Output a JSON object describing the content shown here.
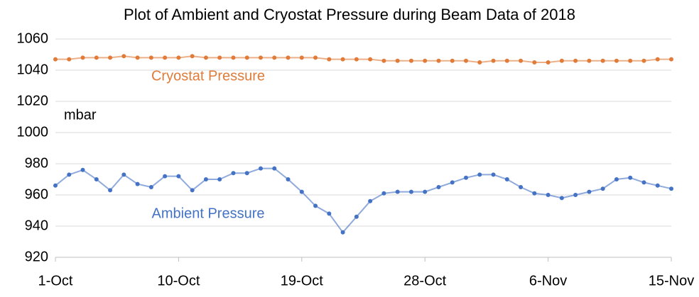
{
  "chart_data": {
    "type": "scatter",
    "title": "Plot of Ambient and Cryostat Pressure during Beam Data of 2018",
    "annotations": [
      "Cryostat Pressure",
      "mbar",
      "Ambient Pressure"
    ],
    "x": [
      0,
      1,
      2,
      3,
      4,
      5,
      6,
      7,
      8,
      9,
      10,
      11,
      12,
      13,
      14,
      15,
      16,
      17,
      18,
      19,
      20,
      21,
      22,
      23,
      24,
      25,
      26,
      27,
      28,
      29,
      30,
      31,
      32,
      33,
      34,
      35,
      36,
      37,
      38,
      39,
      40,
      41,
      42,
      43,
      44,
      45
    ],
    "series": [
      {
        "name": "Cryostat Pressure",
        "color": "#e07b39",
        "values": [
          1047,
          1047,
          1048,
          1048,
          1048,
          1049,
          1048,
          1048,
          1048,
          1048,
          1049,
          1048,
          1048,
          1048,
          1048,
          1048,
          1048,
          1048,
          1048,
          1048,
          1047,
          1047,
          1047,
          1047,
          1046,
          1046,
          1046,
          1046,
          1046,
          1046,
          1046,
          1045,
          1046,
          1046,
          1046,
          1045,
          1045,
          1046,
          1046,
          1046,
          1046,
          1046,
          1046,
          1046,
          1047,
          1047
        ]
      },
      {
        "name": "Ambient Pressure",
        "color": "#4472c4",
        "values": [
          966,
          973,
          976,
          970,
          963,
          973,
          967,
          965,
          972,
          972,
          963,
          970,
          970,
          974,
          974,
          977,
          977,
          970,
          962,
          953,
          948,
          936,
          946,
          956,
          961,
          962,
          962,
          962,
          965,
          968,
          971,
          973,
          973,
          970,
          965,
          961,
          960,
          958,
          960,
          962,
          964,
          970,
          971,
          968,
          966,
          964
        ]
      }
    ],
    "xlim": [
      0,
      45
    ],
    "xticks": [
      {
        "value": 0,
        "label": "1-Oct"
      },
      {
        "value": 9,
        "label": "10-Oct"
      },
      {
        "value": 18,
        "label": "19-Oct"
      },
      {
        "value": 27,
        "label": "28-Oct"
      },
      {
        "value": 36,
        "label": "6-Nov"
      },
      {
        "value": 45,
        "label": "15-Nov"
      }
    ],
    "ylim": [
      920,
      1060
    ],
    "yticks": [
      920,
      940,
      960,
      980,
      1000,
      1020,
      1040,
      1060
    ],
    "grid": true
  }
}
